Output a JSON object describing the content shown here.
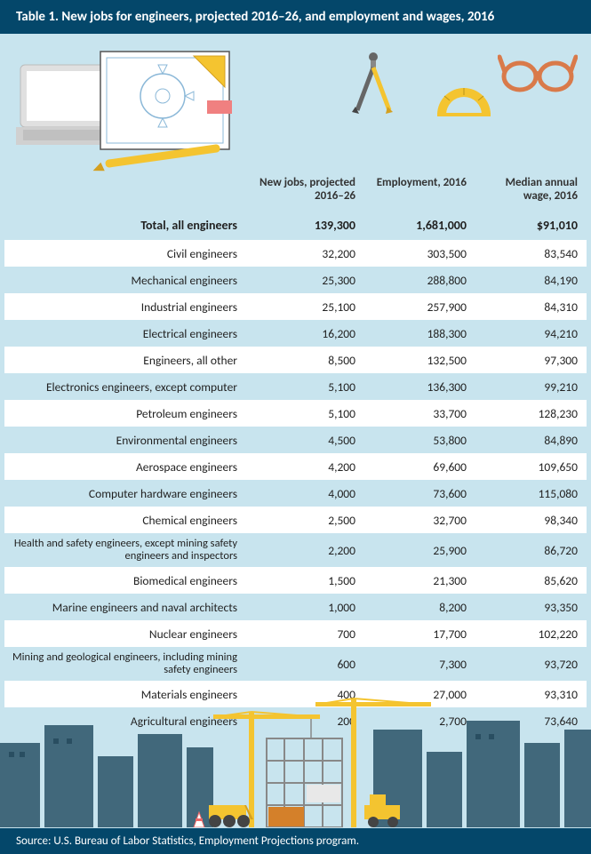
{
  "title": "Table 1. New jobs for engineers, projected 2016–26, and employment and wages, 2016",
  "columns": {
    "col1": "New jobs, projected 2016–26",
    "col2": "Employment, 2016",
    "col3": "Median annual wage, 2016"
  },
  "total": {
    "label": "Total, all engineers",
    "new_jobs": "139,300",
    "employment": "1,681,000",
    "wage": "$91,010"
  },
  "rows": [
    {
      "label": "Civil engineers",
      "new_jobs": "32,200",
      "employment": "303,500",
      "wage": "83,540"
    },
    {
      "label": "Mechanical engineers",
      "new_jobs": "25,300",
      "employment": "288,800",
      "wage": "84,190"
    },
    {
      "label": "Industrial engineers",
      "new_jobs": "25,100",
      "employment": "257,900",
      "wage": "84,310"
    },
    {
      "label": "Electrical engineers",
      "new_jobs": "16,200",
      "employment": "188,300",
      "wage": "94,210"
    },
    {
      "label": "Engineers, all other",
      "new_jobs": "8,500",
      "employment": "132,500",
      "wage": "97,300"
    },
    {
      "label": "Electronics engineers, except computer",
      "new_jobs": "5,100",
      "employment": "136,300",
      "wage": "99,210"
    },
    {
      "label": "Petroleum engineers",
      "new_jobs": "5,100",
      "employment": "33,700",
      "wage": "128,230"
    },
    {
      "label": "Environmental engineers",
      "new_jobs": "4,500",
      "employment": "53,800",
      "wage": "84,890"
    },
    {
      "label": "Aerospace engineers",
      "new_jobs": "4,200",
      "employment": "69,600",
      "wage": "109,650"
    },
    {
      "label": "Computer hardware engineers",
      "new_jobs": "4,000",
      "employment": "73,600",
      "wage": "115,080"
    },
    {
      "label": "Chemical engineers",
      "new_jobs": "2,500",
      "employment": "32,700",
      "wage": "98,340"
    },
    {
      "label": "Health and safety engineers, except mining safety engineers and inspectors",
      "new_jobs": "2,200",
      "employment": "25,900",
      "wage": "86,720",
      "wrap": true
    },
    {
      "label": "Biomedical engineers",
      "new_jobs": "1,500",
      "employment": "21,300",
      "wage": "85,620"
    },
    {
      "label": "Marine engineers and naval architects",
      "new_jobs": "1,000",
      "employment": "8,200",
      "wage": "93,350"
    },
    {
      "label": "Nuclear engineers",
      "new_jobs": "700",
      "employment": "17,700",
      "wage": "102,220"
    },
    {
      "label": "Mining and geological engineers, including mining safety engineers",
      "new_jobs": "600",
      "employment": "7,300",
      "wage": "93,720",
      "wrap": true
    },
    {
      "label": "Materials engineers",
      "new_jobs": "400",
      "employment": "27,000",
      "wage": "93,310"
    },
    {
      "label": "Agricultural engineers",
      "new_jobs": "200",
      "employment": "2,700",
      "wage": "73,640"
    }
  ],
  "source": "Source: U.S. Bureau of Labor Statistics, Employment Projections program.",
  "colors": {
    "header_bg": "#04476a",
    "page_bg": "#c8e4ee",
    "row_even": "#ffffff",
    "skyline": "#2a5368",
    "crane": "#f4c430",
    "glasses": "#d97a4a"
  }
}
